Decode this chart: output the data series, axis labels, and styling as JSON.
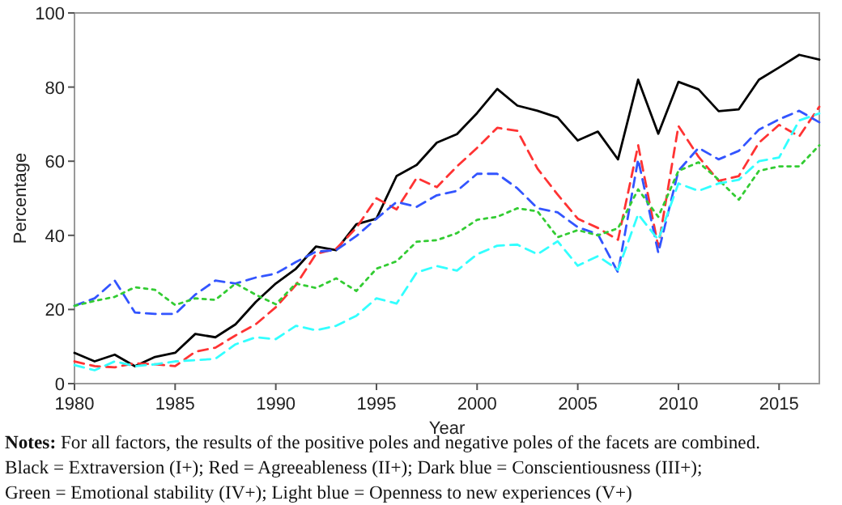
{
  "chart_data": {
    "type": "line",
    "xlabel": "Year",
    "ylabel": "Percentage",
    "x": [
      1980,
      1981,
      1982,
      1983,
      1984,
      1985,
      1986,
      1987,
      1988,
      1989,
      1990,
      1991,
      1992,
      1993,
      1994,
      1995,
      1996,
      1997,
      1998,
      1999,
      2000,
      2001,
      2002,
      2003,
      2004,
      2005,
      2006,
      2007,
      2008,
      2009,
      2010,
      2011,
      2012,
      2013,
      2014,
      2015,
      2016,
      2017
    ],
    "xlim": [
      1980,
      2017
    ],
    "xticks": [
      1980,
      1985,
      1990,
      1995,
      2000,
      2005,
      2010,
      2015
    ],
    "ylim": [
      0,
      100
    ],
    "yticks": [
      0,
      20,
      40,
      60,
      80,
      100
    ],
    "marker": "none",
    "series": [
      {
        "color": "#000000",
        "line_style": "solid",
        "values": [
          8.3,
          6,
          7.8,
          4.7,
          7.2,
          8.3,
          13.4,
          12.5,
          16,
          22,
          27,
          31,
          37,
          36,
          43,
          44.5,
          56,
          59,
          65,
          67.3,
          73,
          79.5,
          75,
          73.6,
          71.8,
          65.6,
          68,
          60.5,
          82,
          67.4,
          81.4,
          79.4,
          73.5,
          74,
          82,
          85.3,
          88.7,
          87.4
        ]
      },
      {
        "color": "#ff3333",
        "line_style": "dashed",
        "values": [
          6,
          4.7,
          4.4,
          5.5,
          5.2,
          4.7,
          8.6,
          9.7,
          13,
          16,
          20.6,
          26.6,
          35,
          36.4,
          42,
          50,
          47,
          55.5,
          53,
          58.6,
          63.6,
          69,
          68.2,
          58,
          51,
          44.5,
          42,
          38.8,
          64.3,
          36.9,
          69.5,
          61.2,
          54.7,
          56,
          65,
          69.8,
          66.7,
          74.7
        ]
      },
      {
        "color": "#3355ff",
        "line_style": "dashed",
        "values": [
          21,
          23,
          27.8,
          19.2,
          18.8,
          18.8,
          24,
          27.8,
          27,
          28.6,
          29.7,
          32.8,
          35.6,
          36,
          39.8,
          44.5,
          49,
          47.7,
          50.8,
          52,
          56.6,
          56.6,
          52.7,
          47.3,
          46.2,
          42.2,
          40.3,
          30,
          60.5,
          35.3,
          57.4,
          63.6,
          60.5,
          62.8,
          68.5,
          71.3,
          73.6,
          70.5
        ]
      },
      {
        "color": "#33cc33",
        "line_style": "dotted",
        "values": [
          21,
          22.3,
          23.4,
          26,
          25.3,
          21.2,
          23,
          22.6,
          27,
          24,
          21.4,
          27,
          25.8,
          28.4,
          25,
          31,
          33,
          38.3,
          38.7,
          40.6,
          44.2,
          45,
          47.3,
          46.5,
          39.5,
          41.4,
          40,
          41.9,
          52.4,
          45,
          57.4,
          59.7,
          55,
          49.6,
          57.4,
          58.6,
          58.6,
          64.3
        ]
      },
      {
        "color": "#33ffff",
        "line_style": "dashed",
        "values": [
          5,
          3.6,
          6,
          4.7,
          5.2,
          6,
          6.3,
          6.7,
          10.6,
          12.5,
          12,
          15.6,
          14.4,
          15.6,
          18.3,
          23,
          21.6,
          30,
          31.7,
          30.5,
          34.9,
          37.2,
          37.5,
          34.9,
          38.4,
          31.8,
          34.4,
          30.7,
          45.7,
          38.8,
          54,
          52,
          54,
          55,
          60,
          61,
          71,
          72.9
        ]
      }
    ],
    "annotations": [
      "Notes: For all factors, the results of the positive poles and negative poles of the facets are combined.",
      "Black = Extraversion (I+); Red = Agreeableness (II+); Dark blue = Conscientiousness (III+);",
      "Green = Emotional stability (IV+); Light blue = Openness to new experiences (V+)"
    ]
  }
}
